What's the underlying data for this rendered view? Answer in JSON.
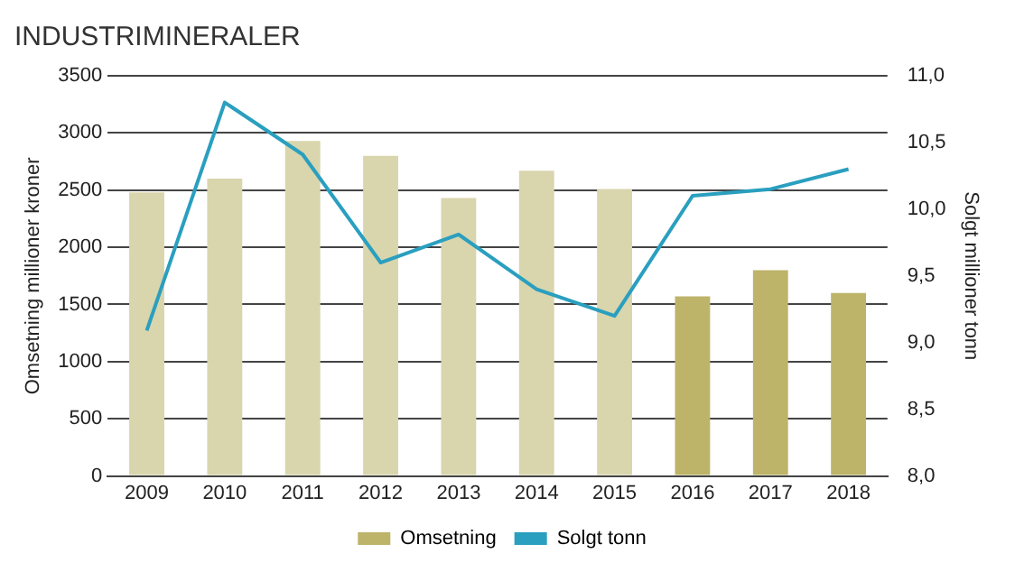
{
  "chart_data": {
    "type": "bar",
    "title": "INDUSTRIMINERALER",
    "ylabel": "Omsetning millioner kroner",
    "y2label": "Solgt millioner tonn",
    "categories": [
      "2009",
      "2010",
      "2011",
      "2012",
      "2013",
      "2014",
      "2015",
      "2016",
      "2017",
      "2018"
    ],
    "series": [
      {
        "name": "Omsetning",
        "color": "#bdb46a",
        "colors": [
          "#d9d5ad",
          "#d9d5ad",
          "#d9d5ad",
          "#d9d5ad",
          "#d9d5ad",
          "#d9d5ad",
          "#d9d5ad",
          "#bdb46a",
          "#bdb46a",
          "#bdb46a"
        ],
        "values": [
          2480,
          2600,
          2930,
          2800,
          2430,
          2670,
          2510,
          1570,
          1800,
          1600
        ]
      },
      {
        "name": "Solgt tonn",
        "type": "line",
        "axis": "y2",
        "color": "#2a9fbf",
        "values": [
          9.09,
          10.8,
          10.41,
          9.6,
          9.81,
          9.4,
          9.2,
          10.1,
          10.15,
          10.3
        ]
      }
    ],
    "ylim": [
      0,
      3500
    ],
    "yticks": [
      0,
      500,
      1000,
      1500,
      2000,
      2500,
      3000,
      3500
    ],
    "y2lim": [
      8,
      11
    ],
    "y2ticks": [
      {
        "value": 8,
        "label": "8,0"
      },
      {
        "value": 8.5,
        "label": "8,5"
      },
      {
        "value": 9,
        "label": "9,0"
      },
      {
        "value": 9.5,
        "label": "9,5"
      },
      {
        "value": 10,
        "label": "10,0"
      },
      {
        "value": 10.5,
        "label": "10,5"
      },
      {
        "value": 11,
        "label": "11,0"
      }
    ],
    "grid": "y",
    "legend": "bottom",
    "marker": "none"
  }
}
